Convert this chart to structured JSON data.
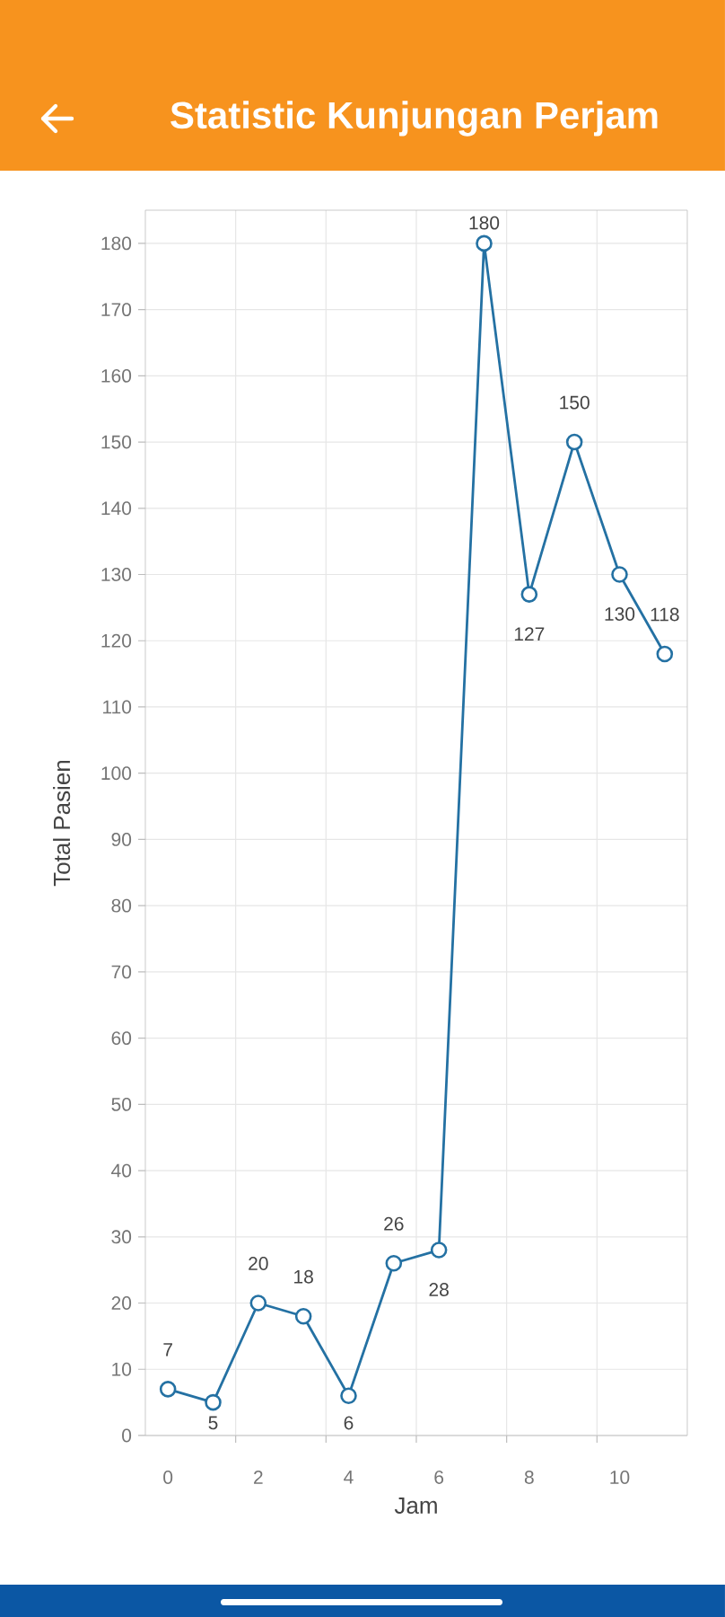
{
  "chart_data": {
    "type": "line",
    "title": "Statistic Kunjungan Perjam",
    "xlabel": "Jam",
    "ylabel": "Total Pasien",
    "x": [
      0,
      1,
      2,
      3,
      4,
      5,
      6,
      7,
      8,
      9,
      10,
      11
    ],
    "values": [
      7,
      5,
      20,
      18,
      6,
      26,
      28,
      180,
      127,
      150,
      130,
      118
    ],
    "color": "#2471a3",
    "marker": "circle",
    "line_style": "solid",
    "data_labels": true,
    "grid": true,
    "xlim": [
      -0.5,
      11.5
    ],
    "xticks": [
      0,
      {
        "value": 1.5,
        "label": null
      },
      2,
      {
        "value": 3.5,
        "label": null
      },
      4,
      {
        "value": 5.5,
        "label": null
      },
      6,
      {
        "value": 7.5,
        "label": null
      },
      8,
      {
        "value": 9.5,
        "label": null
      },
      10
    ],
    "ylim": [
      0,
      185
    ],
    "yticks": [
      0,
      10,
      20,
      30,
      40,
      50,
      60,
      70,
      80,
      90,
      100,
      110,
      120,
      130,
      140,
      150,
      160,
      170,
      180
    ]
  }
}
